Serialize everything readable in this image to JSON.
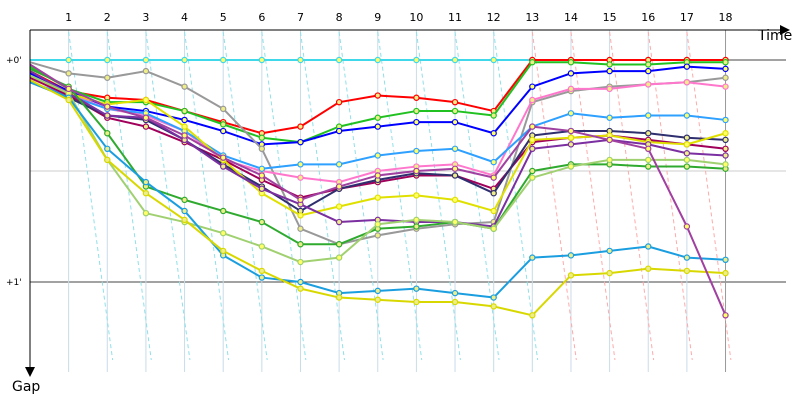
{
  "chart_data": {
    "type": "line",
    "title": "",
    "xlabel": "Time",
    "ylabel": "Gap",
    "x_ticks": [
      "1",
      "2",
      "3",
      "4",
      "5",
      "6",
      "7",
      "8",
      "9",
      "10",
      "11",
      "12",
      "13",
      "14",
      "15",
      "16",
      "17",
      "18"
    ],
    "y_ticks": [
      {
        "label": "+0'",
        "value": 0
      },
      {
        "label": "+1'",
        "value": 1
      }
    ],
    "y_inverted": true,
    "grid": true,
    "legend": "none",
    "x_range": [
      0,
      21
    ],
    "y_range": [
      -0.05,
      1.4
    ],
    "series": [
      {
        "color": "#3fd7ea",
        "values": [
          0,
          0,
          0,
          0,
          0,
          0,
          0,
          0,
          0,
          0,
          0,
          0,
          0,
          0,
          0,
          0,
          0,
          0,
          0
        ]
      },
      {
        "color": "#ff0000",
        "values": [
          0.05,
          0.14,
          0.17,
          0.18,
          0.23,
          0.28,
          0.33,
          0.3,
          0.19,
          0.16,
          0.17,
          0.19,
          0.23,
          0,
          0,
          0,
          0,
          0,
          0
        ]
      },
      {
        "color": "#21c121",
        "values": [
          0.03,
          0.13,
          0.19,
          0.19,
          0.23,
          0.29,
          0.35,
          0.37,
          0.3,
          0.26,
          0.23,
          0.23,
          0.25,
          0.01,
          0.01,
          0.02,
          0.02,
          0.01,
          0.01
        ]
      },
      {
        "color": "#0000ff",
        "values": [
          0.06,
          0.14,
          0.21,
          0.23,
          0.27,
          0.32,
          0.38,
          0.37,
          0.32,
          0.3,
          0.28,
          0.28,
          0.33,
          0.12,
          0.06,
          0.05,
          0.05,
          0.03,
          0.04
        ]
      },
      {
        "color": "#999999",
        "values": [
          0.01,
          0.06,
          0.08,
          0.05,
          0.12,
          0.22,
          0.4,
          0.76,
          0.83,
          0.79,
          0.76,
          0.74,
          0.73,
          0.19,
          0.14,
          0.12,
          0.11,
          0.1,
          0.08
        ]
      },
      {
        "color": "#ff77cc",
        "values": [
          0.08,
          0.15,
          0.22,
          0.25,
          0.32,
          0.45,
          0.5,
          0.53,
          0.55,
          0.5,
          0.48,
          0.47,
          0.52,
          0.18,
          0.13,
          0.13,
          0.11,
          0.1,
          0.12
        ]
      },
      {
        "color": "#2ea0ff",
        "values": [
          0.1,
          0.16,
          0.22,
          0.24,
          0.32,
          0.43,
          0.49,
          0.47,
          0.47,
          0.43,
          0.41,
          0.4,
          0.46,
          0.3,
          0.24,
          0.26,
          0.25,
          0.25,
          0.27
        ]
      },
      {
        "color": "#a0005a",
        "values": [
          0.08,
          0.16,
          0.26,
          0.3,
          0.37,
          0.45,
          0.54,
          0.62,
          0.58,
          0.55,
          0.52,
          0.52,
          0.58,
          0.37,
          0.35,
          0.34,
          0.36,
          0.38,
          0.4
        ]
      },
      {
        "color": "#2f2f6f",
        "values": [
          0.1,
          0.17,
          0.25,
          0.27,
          0.36,
          0.47,
          0.57,
          0.68,
          0.58,
          0.54,
          0.51,
          0.52,
          0.6,
          0.34,
          0.32,
          0.32,
          0.33,
          0.35,
          0.36
        ]
      },
      {
        "color": "#e0e000",
        "values": [
          0.07,
          0.15,
          0.2,
          0.18,
          0.3,
          0.45,
          0.6,
          0.7,
          0.66,
          0.62,
          0.61,
          0.63,
          0.68,
          0.36,
          0.35,
          0.34,
          0.37,
          0.38,
          0.33
        ]
      },
      {
        "color": "#7b2fa0",
        "values": [
          0.05,
          0.15,
          0.25,
          0.26,
          0.36,
          0.48,
          0.58,
          0.65,
          0.73,
          0.72,
          0.73,
          0.73,
          0.75,
          0.4,
          0.38,
          0.36,
          0.38,
          0.42,
          0.43
        ]
      },
      {
        "color": "#2faa2f",
        "values": [
          0.04,
          0.12,
          0.33,
          0.57,
          0.63,
          0.68,
          0.73,
          0.83,
          0.83,
          0.76,
          0.75,
          0.73,
          0.76,
          0.5,
          0.47,
          0.47,
          0.48,
          0.48,
          0.49
        ]
      },
      {
        "color": "#a0d070",
        "values": [
          0.07,
          0.15,
          0.45,
          0.69,
          0.73,
          0.78,
          0.84,
          0.91,
          0.89,
          0.74,
          0.72,
          0.73,
          0.76,
          0.53,
          0.48,
          0.45,
          0.45,
          0.45,
          0.47
        ]
      },
      {
        "color": "#1a9ee0",
        "values": [
          0.1,
          0.17,
          0.4,
          0.55,
          0.68,
          0.88,
          0.98,
          1.0,
          1.05,
          1.04,
          1.03,
          1.05,
          1.07,
          0.89,
          0.88,
          0.86,
          0.84,
          0.89,
          0.9
        ]
      },
      {
        "color": "#d8d800",
        "values": [
          0.09,
          0.18,
          0.45,
          0.6,
          0.72,
          0.86,
          0.95,
          1.03,
          1.07,
          1.08,
          1.09,
          1.09,
          1.11,
          1.15,
          0.97,
          0.96,
          0.94,
          0.95,
          0.96
        ]
      },
      {
        "color": "#a040a0",
        "values": [
          0.02,
          0.13,
          0.21,
          0.26,
          0.34,
          0.44,
          0.52,
          0.63,
          0.57,
          0.52,
          0.5,
          0.49,
          0.53,
          0.3,
          0.32,
          0.36,
          0.4,
          0.75,
          1.15
        ]
      }
    ]
  }
}
